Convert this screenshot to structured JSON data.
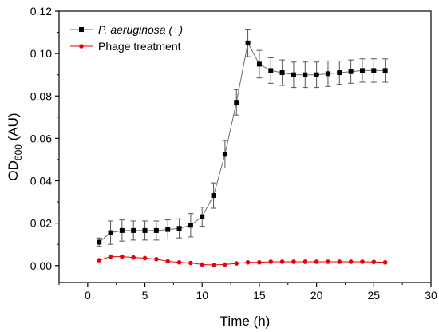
{
  "chart_data": {
    "type": "line",
    "xlabel": "Time (h)",
    "ylabel": "OD600 (AU)",
    "ylabel_main": "OD",
    "ylabel_sub": "600",
    "ylabel_suffix": " (AU)",
    "xlim": [
      -2.5,
      30
    ],
    "ylim": [
      -0.008,
      0.12
    ],
    "x_ticks": [
      0,
      5,
      10,
      15,
      20,
      25,
      30
    ],
    "y_ticks": [
      0.0,
      0.02,
      0.04,
      0.06,
      0.08,
      0.1,
      0.12
    ],
    "x_tick_labels": [
      "0",
      "5",
      "10",
      "15",
      "20",
      "25",
      "30"
    ],
    "y_tick_labels": [
      "0.00",
      "0.02",
      "0.04",
      "0.06",
      "0.08",
      "0.10",
      "0.12"
    ],
    "grid": false,
    "legend_position": "top-left",
    "series": [
      {
        "name": "P. aeruginosa (+)",
        "italic_part": "P. aeruginosa",
        "plain_part": " (+)",
        "color": "#000000",
        "marker": "square",
        "x": [
          1,
          2,
          3,
          4,
          5,
          6,
          7,
          8,
          9,
          10,
          11,
          12,
          13,
          14,
          15,
          16,
          17,
          18,
          19,
          20,
          21,
          22,
          23,
          24,
          25,
          26
        ],
        "y": [
          0.011,
          0.0155,
          0.0165,
          0.0165,
          0.0165,
          0.0165,
          0.017,
          0.0175,
          0.019,
          0.023,
          0.033,
          0.0525,
          0.077,
          0.105,
          0.095,
          0.092,
          0.091,
          0.09,
          0.09,
          0.09,
          0.0905,
          0.091,
          0.0915,
          0.092,
          0.092,
          0.092
        ],
        "err": [
          0.002,
          0.0055,
          0.005,
          0.0045,
          0.0045,
          0.0045,
          0.0045,
          0.0045,
          0.0055,
          0.0045,
          0.006,
          0.0065,
          0.006,
          0.0065,
          0.0065,
          0.006,
          0.006,
          0.006,
          0.006,
          0.006,
          0.006,
          0.0055,
          0.0055,
          0.0055,
          0.0055,
          0.0055
        ]
      },
      {
        "name": "Phage treatment",
        "color": "#e8000b",
        "marker": "circle",
        "x": [
          1,
          2,
          3,
          4,
          5,
          6,
          7,
          8,
          9,
          10,
          11,
          12,
          13,
          14,
          15,
          16,
          17,
          18,
          19,
          20,
          21,
          22,
          23,
          24,
          25,
          26
        ],
        "y": [
          0.0025,
          0.0042,
          0.0042,
          0.0038,
          0.0035,
          0.003,
          0.002,
          0.0015,
          0.0012,
          0.0005,
          0.0003,
          0.0005,
          0.001,
          0.0015,
          0.0015,
          0.0018,
          0.0018,
          0.0018,
          0.0018,
          0.0018,
          0.0018,
          0.0018,
          0.0018,
          0.0018,
          0.0017,
          0.0015
        ]
      }
    ]
  }
}
